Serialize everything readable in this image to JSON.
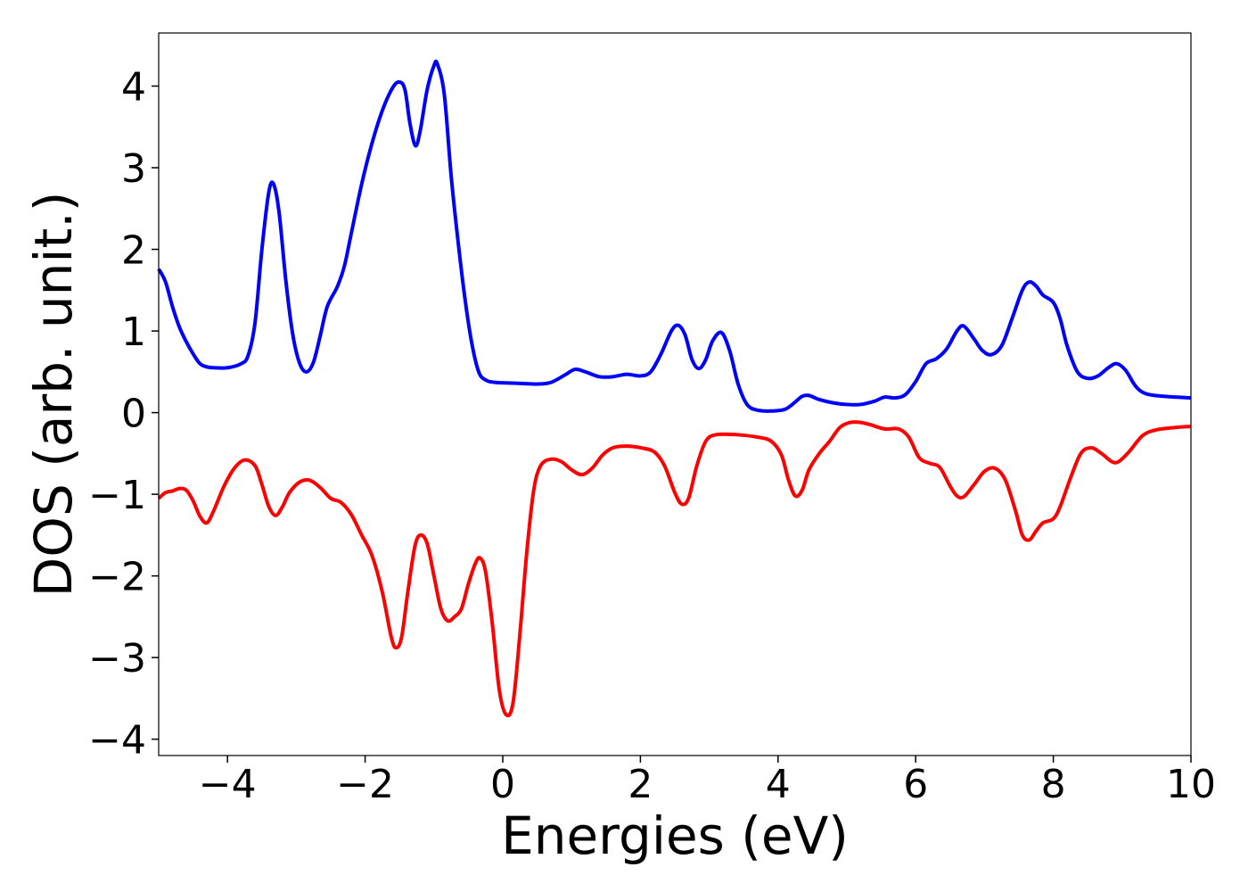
{
  "chart_data": {
    "type": "line",
    "title": "",
    "xlabel": "Energies (eV)",
    "ylabel": "DOS (arb. unit.)",
    "xlim": [
      -5,
      10
    ],
    "ylim": [
      -4.2,
      4.65
    ],
    "grid": false,
    "legend": "none",
    "x_ticks": [
      -4,
      -2,
      0,
      2,
      4,
      6,
      8,
      10
    ],
    "x_tick_labels": [
      "−4",
      "−2",
      "0",
      "2",
      "4",
      "6",
      "8",
      "10"
    ],
    "y_ticks": [
      -4,
      -3,
      -2,
      -1,
      0,
      1,
      2,
      3,
      4
    ],
    "y_tick_labels": [
      "−4",
      "−3",
      "−2",
      "−1",
      "0",
      "1",
      "2",
      "3",
      "4"
    ],
    "series": [
      {
        "color": "#0000ff",
        "points": [
          [
            -5.0,
            1.76
          ],
          [
            -4.9,
            1.6
          ],
          [
            -4.8,
            1.3
          ],
          [
            -4.7,
            1.05
          ],
          [
            -4.6,
            0.87
          ],
          [
            -4.5,
            0.72
          ],
          [
            -4.4,
            0.6
          ],
          [
            -4.3,
            0.56
          ],
          [
            -4.2,
            0.55
          ],
          [
            -4.0,
            0.55
          ],
          [
            -3.8,
            0.6
          ],
          [
            -3.7,
            0.7
          ],
          [
            -3.6,
            1.1
          ],
          [
            -3.5,
            2.0
          ],
          [
            -3.4,
            2.7
          ],
          [
            -3.33,
            2.8
          ],
          [
            -3.25,
            2.45
          ],
          [
            -3.15,
            1.6
          ],
          [
            -3.05,
            0.95
          ],
          [
            -2.95,
            0.6
          ],
          [
            -2.85,
            0.5
          ],
          [
            -2.75,
            0.62
          ],
          [
            -2.65,
            0.95
          ],
          [
            -2.55,
            1.3
          ],
          [
            -2.4,
            1.55
          ],
          [
            -2.3,
            1.8
          ],
          [
            -2.2,
            2.2
          ],
          [
            -2.05,
            2.8
          ],
          [
            -1.9,
            3.3
          ],
          [
            -1.75,
            3.7
          ],
          [
            -1.6,
            3.98
          ],
          [
            -1.5,
            4.05
          ],
          [
            -1.42,
            3.95
          ],
          [
            -1.35,
            3.55
          ],
          [
            -1.27,
            3.27
          ],
          [
            -1.2,
            3.45
          ],
          [
            -1.1,
            3.95
          ],
          [
            -1.0,
            4.25
          ],
          [
            -0.95,
            4.27
          ],
          [
            -0.85,
            3.9
          ],
          [
            -0.75,
            2.9
          ],
          [
            -0.65,
            2.1
          ],
          [
            -0.55,
            1.4
          ],
          [
            -0.45,
            0.85
          ],
          [
            -0.35,
            0.5
          ],
          [
            -0.25,
            0.4
          ],
          [
            -0.1,
            0.37
          ],
          [
            0.2,
            0.36
          ],
          [
            0.5,
            0.35
          ],
          [
            0.7,
            0.37
          ],
          [
            0.9,
            0.46
          ],
          [
            1.05,
            0.53
          ],
          [
            1.2,
            0.5
          ],
          [
            1.4,
            0.44
          ],
          [
            1.6,
            0.44
          ],
          [
            1.8,
            0.47
          ],
          [
            2.0,
            0.45
          ],
          [
            2.15,
            0.5
          ],
          [
            2.3,
            0.72
          ],
          [
            2.45,
            1.0
          ],
          [
            2.55,
            1.07
          ],
          [
            2.65,
            0.95
          ],
          [
            2.75,
            0.65
          ],
          [
            2.85,
            0.54
          ],
          [
            2.95,
            0.65
          ],
          [
            3.05,
            0.88
          ],
          [
            3.18,
            0.98
          ],
          [
            3.3,
            0.75
          ],
          [
            3.42,
            0.35
          ],
          [
            3.55,
            0.1
          ],
          [
            3.7,
            0.03
          ],
          [
            3.9,
            0.02
          ],
          [
            4.1,
            0.04
          ],
          [
            4.25,
            0.13
          ],
          [
            4.35,
            0.2
          ],
          [
            4.45,
            0.21
          ],
          [
            4.6,
            0.16
          ],
          [
            4.8,
            0.12
          ],
          [
            5.0,
            0.1
          ],
          [
            5.2,
            0.1
          ],
          [
            5.4,
            0.14
          ],
          [
            5.55,
            0.19
          ],
          [
            5.7,
            0.18
          ],
          [
            5.85,
            0.22
          ],
          [
            6.0,
            0.38
          ],
          [
            6.15,
            0.6
          ],
          [
            6.3,
            0.66
          ],
          [
            6.45,
            0.78
          ],
          [
            6.6,
            1.0
          ],
          [
            6.7,
            1.06
          ],
          [
            6.85,
            0.9
          ],
          [
            6.97,
            0.76
          ],
          [
            7.1,
            0.71
          ],
          [
            7.25,
            0.82
          ],
          [
            7.4,
            1.15
          ],
          [
            7.55,
            1.5
          ],
          [
            7.65,
            1.6
          ],
          [
            7.75,
            1.55
          ],
          [
            7.85,
            1.44
          ],
          [
            8.0,
            1.35
          ],
          [
            8.1,
            1.15
          ],
          [
            8.2,
            0.82
          ],
          [
            8.35,
            0.5
          ],
          [
            8.5,
            0.42
          ],
          [
            8.65,
            0.45
          ],
          [
            8.8,
            0.55
          ],
          [
            8.92,
            0.6
          ],
          [
            9.05,
            0.52
          ],
          [
            9.2,
            0.32
          ],
          [
            9.35,
            0.23
          ],
          [
            9.6,
            0.2
          ],
          [
            10.0,
            0.18
          ]
        ]
      },
      {
        "color": "#ff0000",
        "points": [
          [
            -5.0,
            -1.05
          ],
          [
            -4.9,
            -0.98
          ],
          [
            -4.8,
            -0.96
          ],
          [
            -4.7,
            -0.93
          ],
          [
            -4.6,
            -0.95
          ],
          [
            -4.5,
            -1.08
          ],
          [
            -4.4,
            -1.27
          ],
          [
            -4.3,
            -1.35
          ],
          [
            -4.2,
            -1.2
          ],
          [
            -4.05,
            -0.9
          ],
          [
            -3.9,
            -0.68
          ],
          [
            -3.75,
            -0.58
          ],
          [
            -3.6,
            -0.65
          ],
          [
            -3.5,
            -0.88
          ],
          [
            -3.4,
            -1.15
          ],
          [
            -3.3,
            -1.26
          ],
          [
            -3.2,
            -1.15
          ],
          [
            -3.1,
            -0.98
          ],
          [
            -2.95,
            -0.85
          ],
          [
            -2.8,
            -0.83
          ],
          [
            -2.65,
            -0.92
          ],
          [
            -2.5,
            -1.05
          ],
          [
            -2.35,
            -1.1
          ],
          [
            -2.2,
            -1.25
          ],
          [
            -2.05,
            -1.5
          ],
          [
            -1.9,
            -1.75
          ],
          [
            -1.75,
            -2.2
          ],
          [
            -1.62,
            -2.75
          ],
          [
            -1.55,
            -2.88
          ],
          [
            -1.47,
            -2.75
          ],
          [
            -1.38,
            -2.2
          ],
          [
            -1.28,
            -1.65
          ],
          [
            -1.2,
            -1.5
          ],
          [
            -1.1,
            -1.6
          ],
          [
            -1.0,
            -2.0
          ],
          [
            -0.9,
            -2.4
          ],
          [
            -0.8,
            -2.55
          ],
          [
            -0.7,
            -2.5
          ],
          [
            -0.6,
            -2.4
          ],
          [
            -0.5,
            -2.1
          ],
          [
            -0.4,
            -1.85
          ],
          [
            -0.33,
            -1.78
          ],
          [
            -0.25,
            -1.95
          ],
          [
            -0.15,
            -2.6
          ],
          [
            -0.05,
            -3.4
          ],
          [
            0.05,
            -3.7
          ],
          [
            0.15,
            -3.55
          ],
          [
            0.25,
            -2.7
          ],
          [
            0.35,
            -1.7
          ],
          [
            0.45,
            -0.95
          ],
          [
            0.55,
            -0.65
          ],
          [
            0.7,
            -0.57
          ],
          [
            0.85,
            -0.6
          ],
          [
            1.0,
            -0.7
          ],
          [
            1.15,
            -0.76
          ],
          [
            1.3,
            -0.68
          ],
          [
            1.45,
            -0.52
          ],
          [
            1.6,
            -0.43
          ],
          [
            1.8,
            -0.41
          ],
          [
            2.0,
            -0.43
          ],
          [
            2.2,
            -0.48
          ],
          [
            2.35,
            -0.65
          ],
          [
            2.5,
            -0.98
          ],
          [
            2.6,
            -1.12
          ],
          [
            2.7,
            -1.05
          ],
          [
            2.82,
            -0.65
          ],
          [
            2.95,
            -0.35
          ],
          [
            3.1,
            -0.27
          ],
          [
            3.4,
            -0.27
          ],
          [
            3.7,
            -0.3
          ],
          [
            3.9,
            -0.35
          ],
          [
            4.05,
            -0.52
          ],
          [
            4.15,
            -0.82
          ],
          [
            4.25,
            -1.02
          ],
          [
            4.35,
            -0.95
          ],
          [
            4.45,
            -0.7
          ],
          [
            4.6,
            -0.5
          ],
          [
            4.75,
            -0.35
          ],
          [
            4.9,
            -0.18
          ],
          [
            5.05,
            -0.12
          ],
          [
            5.2,
            -0.12
          ],
          [
            5.35,
            -0.15
          ],
          [
            5.55,
            -0.2
          ],
          [
            5.75,
            -0.2
          ],
          [
            5.9,
            -0.3
          ],
          [
            6.05,
            -0.55
          ],
          [
            6.2,
            -0.62
          ],
          [
            6.35,
            -0.67
          ],
          [
            6.5,
            -0.9
          ],
          [
            6.6,
            -1.02
          ],
          [
            6.7,
            -1.03
          ],
          [
            6.85,
            -0.88
          ],
          [
            7.0,
            -0.72
          ],
          [
            7.15,
            -0.68
          ],
          [
            7.3,
            -0.82
          ],
          [
            7.45,
            -1.2
          ],
          [
            7.55,
            -1.5
          ],
          [
            7.65,
            -1.56
          ],
          [
            7.75,
            -1.45
          ],
          [
            7.85,
            -1.35
          ],
          [
            8.0,
            -1.3
          ],
          [
            8.1,
            -1.15
          ],
          [
            8.25,
            -0.8
          ],
          [
            8.4,
            -0.5
          ],
          [
            8.55,
            -0.43
          ],
          [
            8.7,
            -0.5
          ],
          [
            8.85,
            -0.6
          ],
          [
            8.95,
            -0.6
          ],
          [
            9.1,
            -0.48
          ],
          [
            9.3,
            -0.28
          ],
          [
            9.5,
            -0.21
          ],
          [
            9.8,
            -0.18
          ],
          [
            10.0,
            -0.17
          ]
        ]
      }
    ]
  }
}
